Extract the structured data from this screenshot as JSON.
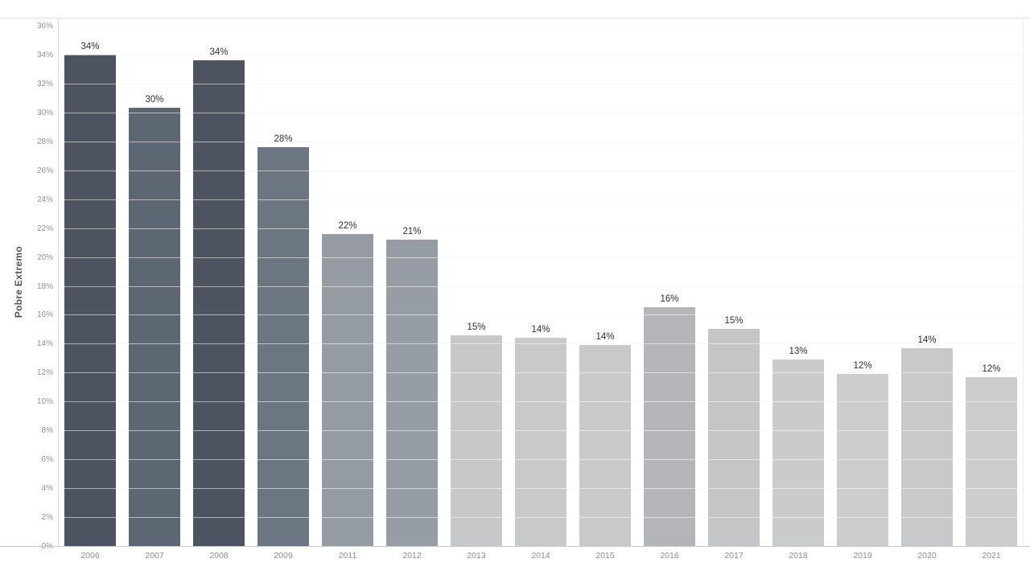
{
  "chart_data": {
    "type": "bar",
    "title": "",
    "ylabel": "Pobre Extremo",
    "xlabel": "",
    "ylim": [
      0,
      36
    ],
    "ytick_step": 2,
    "grid": true,
    "legend": false,
    "categories": [
      "2006",
      "2007",
      "2008",
      "2009",
      "2011",
      "2012",
      "2013",
      "2014",
      "2015",
      "2016",
      "2017",
      "2018",
      "2019",
      "2020",
      "2021"
    ],
    "values": [
      34.0,
      30.3,
      33.6,
      27.6,
      21.6,
      21.2,
      14.6,
      14.4,
      13.9,
      16.5,
      15.0,
      12.9,
      11.9,
      13.7,
      11.7
    ],
    "bar_labels": [
      "34%",
      "30%",
      "34%",
      "28%",
      "22%",
      "21%",
      "15%",
      "14%",
      "14%",
      "16%",
      "15%",
      "13%",
      "12%",
      "14%",
      "12%"
    ],
    "bar_colors": [
      "#4b5460",
      "#5d6673",
      "#4b5460",
      "#6c7682",
      "#959ba3",
      "#979da4",
      "#c7c8c9",
      "#c8c9c9",
      "#c9c9ca",
      "#b3b5b8",
      "#c4c5c7",
      "#cacbcb",
      "#cccccc",
      "#c8c9ca",
      "#cdcdcd"
    ],
    "yticks": [
      "0%",
      "2%",
      "4%",
      "6%",
      "8%",
      "10%",
      "12%",
      "14%",
      "16%",
      "18%",
      "20%",
      "22%",
      "24%",
      "26%",
      "28%",
      "30%",
      "32%",
      "34%",
      "36%"
    ]
  },
  "colors": {
    "background": "#ffffff",
    "axis_line": "#c9c9c9",
    "grid_line": "#f1f1f1",
    "tick_text": "#919191",
    "value_text": "#2e2e2e",
    "axis_title_text": "#565656"
  }
}
